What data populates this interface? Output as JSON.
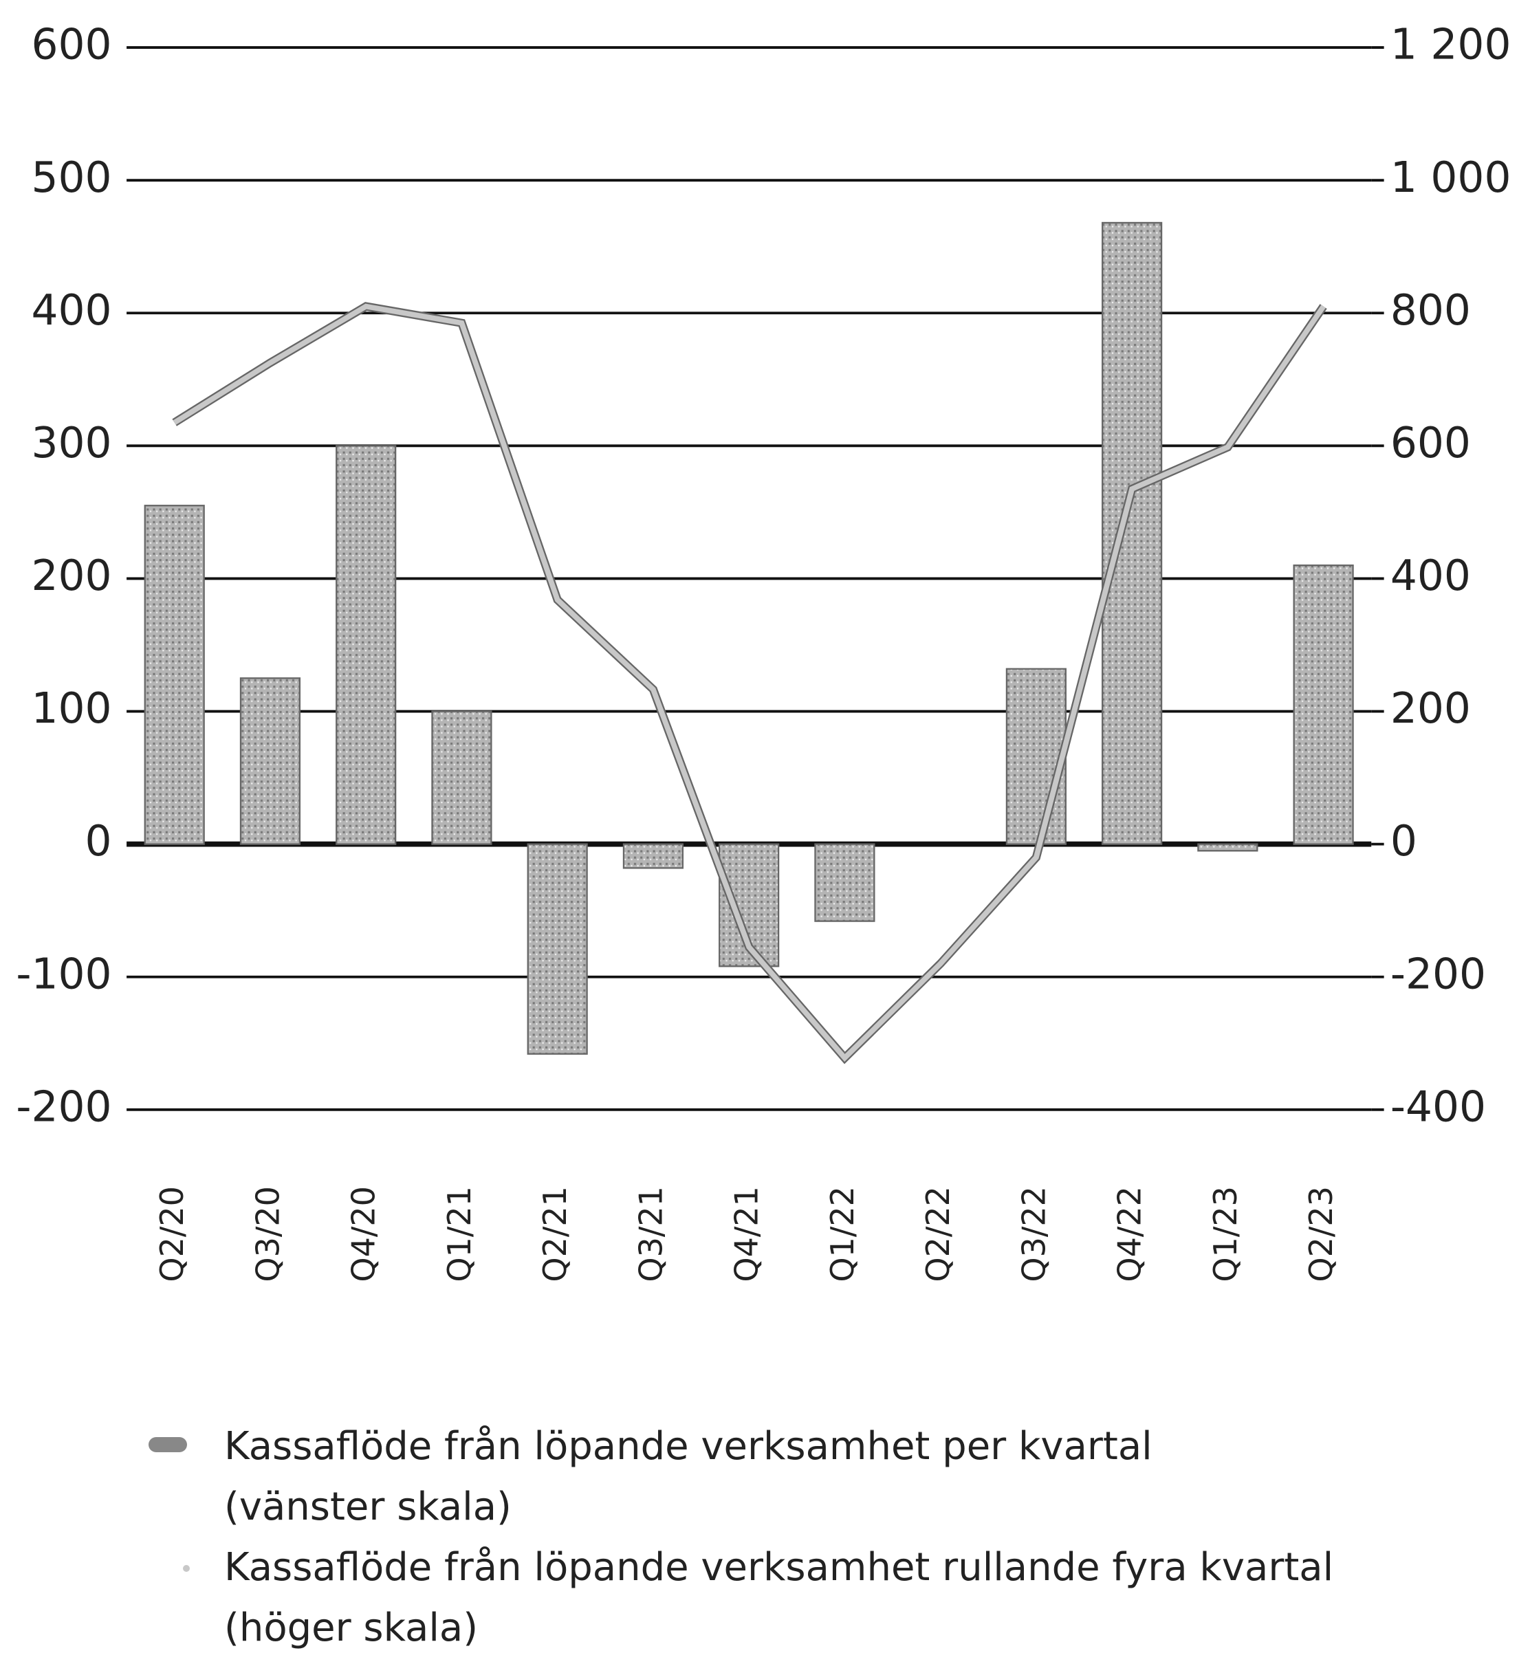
{
  "chart_data": {
    "type": "bar_line",
    "categories": [
      "Q2/20",
      "Q3/20",
      "Q4/20",
      "Q1/21",
      "Q2/21",
      "Q3/21",
      "Q4/21",
      "Q1/22",
      "Q2/22",
      "Q3/22",
      "Q4/22",
      "Q1/23",
      "Q2/23"
    ],
    "series": [
      {
        "name": "Kassaflöde från löpande verksamhet per kvartal\n(vänster skala)",
        "type": "bar",
        "color": "#a8a8a8",
        "values": [
          255,
          125,
          300,
          100,
          -158,
          -18,
          -92,
          -58,
          0,
          132,
          468,
          -5,
          210
        ]
      },
      {
        "name": "Kassaflöde från löpande verksamhet rullande fyra kvartal\n(höger skala)",
        "type": "line",
        "axis": "y2",
        "color": "#c8c8c8",
        "values": [
          635,
          725,
          810,
          785,
          368,
          233,
          -155,
          -322,
          -180,
          -20,
          535,
          598,
          810
        ]
      }
    ],
    "ylim": [
      -200,
      600
    ],
    "yticks": [
      -200,
      -100,
      0,
      100,
      200,
      300,
      400,
      500,
      600
    ],
    "y2lim": [
      -400,
      1200
    ],
    "y2ticks": [
      -400,
      -200,
      0,
      200,
      400,
      600,
      800,
      {
        "value": 1000,
        "label": "1 000"
      },
      {
        "value": 1200,
        "label": "1 200"
      }
    ],
    "grid": true
  }
}
